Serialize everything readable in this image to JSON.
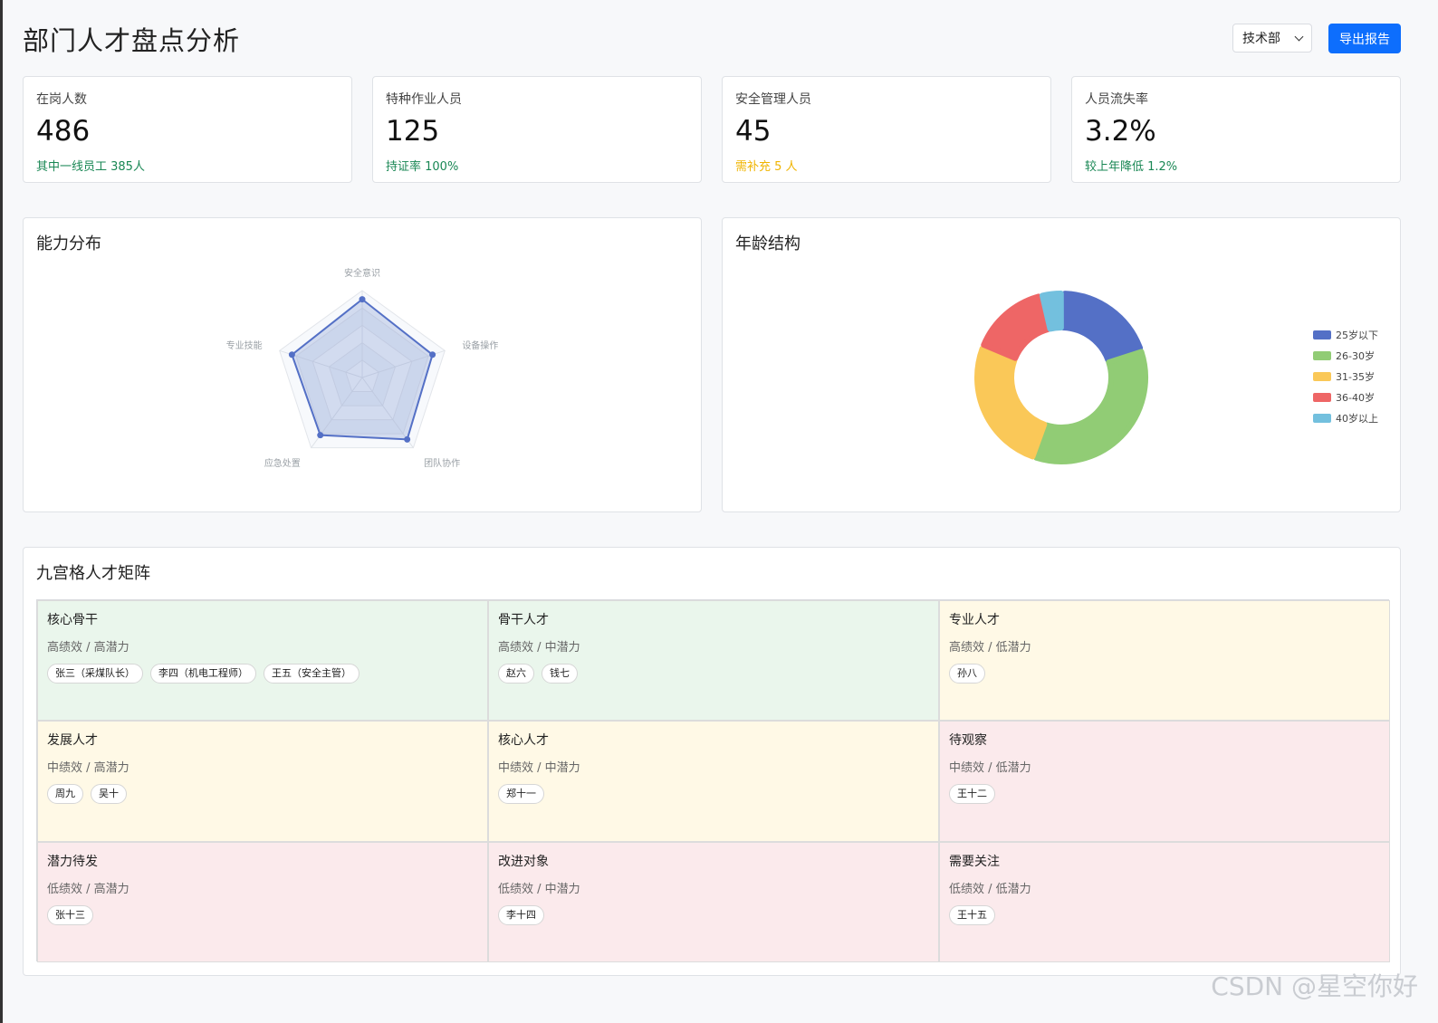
{
  "header": {
    "title": "部门人才盘点分析",
    "department": "技术部",
    "export_label": "导出报告"
  },
  "stats": [
    {
      "label": "在岗人数",
      "value": "486",
      "note": "其中一线员工 385人",
      "note_color": "#198754"
    },
    {
      "label": "特种作业人员",
      "value": "125",
      "note": "持证率 100%",
      "note_color": "#198754"
    },
    {
      "label": "安全管理人员",
      "value": "45",
      "note": "需补充 5 人",
      "note_color": "#f0b400"
    },
    {
      "label": "人员流失率",
      "value": "3.2%",
      "note": "较上年降低 1.2%",
      "note_color": "#198754"
    }
  ],
  "ability": {
    "title": "能力分布",
    "chart_data": {
      "type": "radar",
      "indicators": [
        "安全意识",
        "设备操作",
        "团队协作",
        "应急处置",
        "专业技能"
      ],
      "max": 100,
      "values": [
        90,
        85,
        88,
        82,
        85
      ],
      "color": "#5470c6"
    }
  },
  "age": {
    "title": "年龄结构",
    "chart_data": {
      "type": "pie",
      "categories": [
        "25岁以下",
        "26-30岁",
        "31-35岁",
        "36-40岁",
        "40岁以上"
      ],
      "values": [
        18,
        33,
        24,
        14,
        4
      ],
      "colors": [
        "#5470c6",
        "#91cc75",
        "#fac858",
        "#ee6666",
        "#73c0de"
      ]
    }
  },
  "matrix": {
    "title": "九宫格人才矩阵",
    "cells": [
      {
        "title": "核心骨干",
        "sub": "高绩效 / 高潜力",
        "bg": "#eaf6ec",
        "tags": [
          "张三（采煤队长）",
          "李四（机电工程师）",
          "王五（安全主管）"
        ]
      },
      {
        "title": "骨干人才",
        "sub": "高绩效 / 中潜力",
        "bg": "#eaf6ec",
        "tags": [
          "赵六",
          "钱七"
        ]
      },
      {
        "title": "专业人才",
        "sub": "高绩效 / 低潜力",
        "bg": "#fff9e6",
        "tags": [
          "孙八"
        ]
      },
      {
        "title": "发展人才",
        "sub": "中绩效 / 高潜力",
        "bg": "#fff9e6",
        "tags": [
          "周九",
          "吴十"
        ]
      },
      {
        "title": "核心人才",
        "sub": "中绩效 / 中潜力",
        "bg": "#fff9e6",
        "tags": [
          "郑十一"
        ]
      },
      {
        "title": "待观察",
        "sub": "中绩效 / 低潜力",
        "bg": "#fbeaec",
        "tags": [
          "王十二"
        ]
      },
      {
        "title": "潜力待发",
        "sub": "低绩效 / 高潜力",
        "bg": "#fbeaec",
        "tags": [
          "张十三"
        ]
      },
      {
        "title": "改进对象",
        "sub": "低绩效 / 中潜力",
        "bg": "#fbeaec",
        "tags": [
          "李十四"
        ]
      },
      {
        "title": "需要关注",
        "sub": "低绩效 / 低潜力",
        "bg": "#fbeaec",
        "tags": [
          "王十五"
        ]
      }
    ]
  },
  "watermark": "CSDN @星空你好"
}
